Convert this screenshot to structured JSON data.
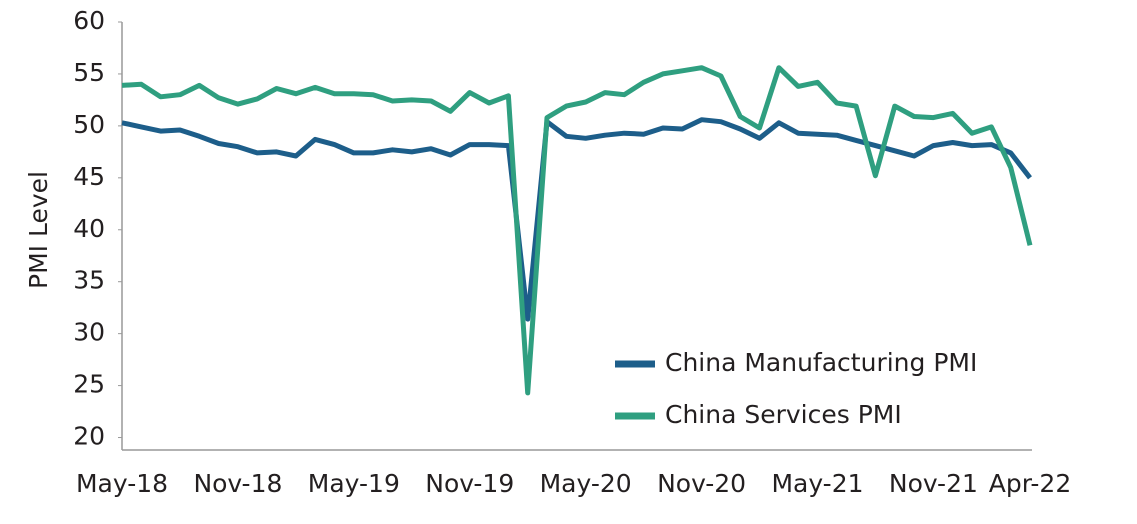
{
  "chart_data": {
    "type": "line",
    "y_label": "PMI Level",
    "categories": [
      "May-18",
      null,
      null,
      null,
      null,
      null,
      "Nov-18",
      null,
      null,
      null,
      null,
      null,
      "May-19",
      null,
      null,
      null,
      null,
      null,
      "Nov-19",
      null,
      null,
      null,
      null,
      null,
      "May-20",
      null,
      null,
      null,
      null,
      null,
      "Nov-20",
      null,
      null,
      null,
      null,
      null,
      "May-21",
      null,
      null,
      null,
      null,
      null,
      "Nov-21",
      null,
      null,
      null,
      null,
      "Apr-22"
    ],
    "series": [
      {
        "name": "China Manufacturing PMI",
        "color": "#1d5e8a",
        "values": [
          50.3,
          49.9,
          49.5,
          49.6,
          49.0,
          48.3,
          48.0,
          47.4,
          47.5,
          47.1,
          48.7,
          48.2,
          47.4,
          47.4,
          47.7,
          47.5,
          47.8,
          47.2,
          48.2,
          48.2,
          48.1,
          31.4,
          50.4,
          49.0,
          48.8,
          49.1,
          49.3,
          49.2,
          49.8,
          49.7,
          50.6,
          50.4,
          49.7,
          48.8,
          50.3,
          49.3,
          49.2,
          49.1,
          48.6,
          48.1,
          47.6,
          47.1,
          48.1,
          48.4,
          48.1,
          48.2,
          47.4,
          45.0
        ]
      },
      {
        "name": "China Services PMI",
        "color": "#2f9f80",
        "values": [
          53.9,
          54.0,
          52.8,
          53.0,
          53.9,
          52.7,
          52.1,
          52.6,
          53.6,
          53.1,
          53.7,
          53.1,
          53.1,
          53.0,
          52.4,
          52.5,
          52.4,
          51.4,
          53.2,
          52.2,
          52.9,
          24.3,
          50.8,
          51.9,
          52.3,
          53.2,
          53.0,
          54.2,
          55.0,
          55.3,
          55.6,
          54.8,
          50.9,
          49.8,
          55.6,
          53.8,
          54.2,
          52.2,
          51.9,
          45.2,
          51.9,
          50.9,
          50.8,
          51.2,
          49.3,
          49.9,
          46.0,
          38.5
        ]
      }
    ],
    "ylim": [
      18.8,
      60
    ],
    "yticks": [
      20,
      25,
      30,
      35,
      40,
      45,
      50,
      55,
      60
    ],
    "legend": "lower-right"
  }
}
